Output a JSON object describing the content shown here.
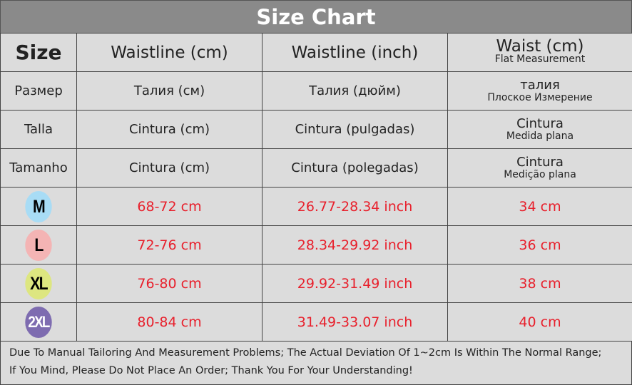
{
  "title": "Size Chart",
  "header": {
    "c0": "Size",
    "c1": "Waistline (cm)",
    "c2": "Waistline (inch)",
    "c3": "Waist (cm)",
    "c3sub": "Flat Measurement"
  },
  "lang_rows": [
    {
      "c0": "Размер",
      "c1": "Талия (см)",
      "c2": "Талия (дюйм)",
      "c3": "талия",
      "c3sub": "Плоское Измерение"
    },
    {
      "c0": "Talla",
      "c1": "Cintura (cm)",
      "c2": "Cintura (pulgadas)",
      "c3": "Cintura",
      "c3sub": "Medida plana"
    },
    {
      "c0": "Tamanho",
      "c1": "Cintura (cm)",
      "c2": "Cintura (polegadas)",
      "c3": "Cintura",
      "c3sub": "Medição plana"
    }
  ],
  "sizes": [
    {
      "size": "M",
      "color": "#a8dcf5",
      "waist_cm": "68-72 cm",
      "waist_inch": "26.77-28.34 inch",
      "flat": "34 cm"
    },
    {
      "size": "L",
      "color": "#f4b4b4",
      "waist_cm": "72-76 cm",
      "waist_inch": "28.34-29.92 inch",
      "flat": "36 cm"
    },
    {
      "size": "XL",
      "color": "#dde680",
      "waist_cm": "76-80 cm",
      "waist_inch": "29.92-31.49 inch",
      "flat": "38 cm"
    },
    {
      "size": "2XL",
      "color": "#7e6cb0",
      "waist_cm": "80-84 cm",
      "waist_inch": "31.49-33.07 inch",
      "flat": "40 cm"
    }
  ],
  "footer": [
    "Due To Manual Tailoring And Measurement Problems; The Actual Deviation Of 1~2cm Is Within The Normal Range;",
    "If You Mind, Please Do Not Place An Order; Thank You For Your Understanding!"
  ]
}
